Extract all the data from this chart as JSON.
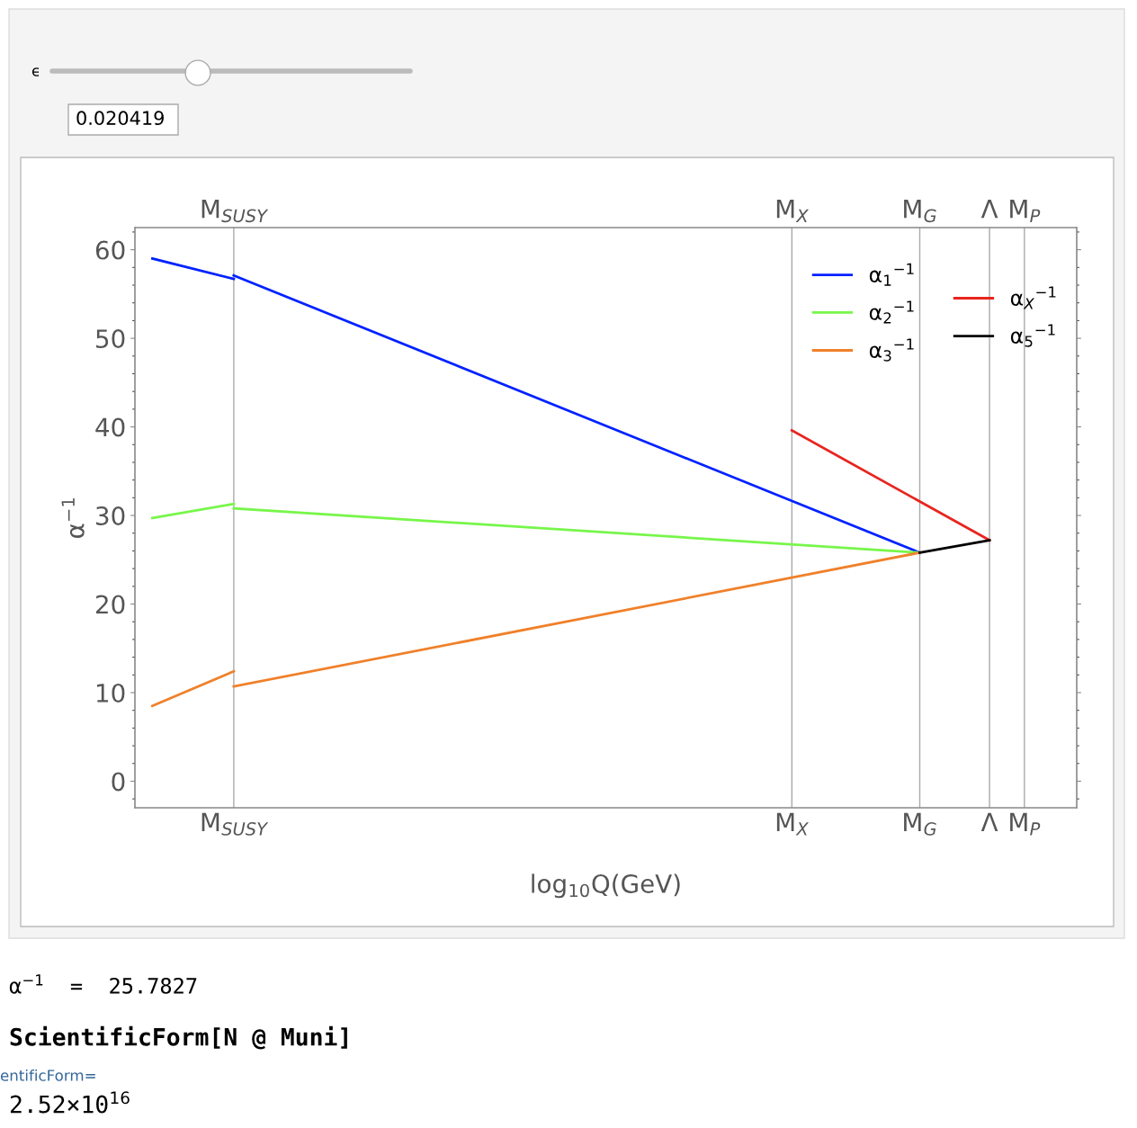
{
  "chart_data": {
    "type": "line",
    "xlabel": "log$_{10}$Q(GeV)",
    "ylabel": "α$^{−1}$",
    "ylim": [
      -3,
      62.5
    ],
    "categories": [
      null,
      null,
      null,
      null,
      null,
      null,
      null,
      null,
      "M$_{SUSY}$",
      null,
      null,
      null,
      null,
      null,
      null,
      null,
      null,
      null,
      null,
      null,
      null,
      null,
      null,
      null,
      null,
      null,
      null,
      null,
      null,
      null,
      null,
      null,
      null,
      null,
      null,
      null,
      null,
      null,
      null,
      null,
      null,
      null,
      null,
      null,
      null,
      null,
      null,
      null,
      null,
      null,
      null,
      null,
      null,
      null,
      null,
      null,
      "M$_{X}$",
      null,
      null,
      null,
      null,
      null,
      null,
      null,
      null,
      null,
      null,
      "M$_{G}$",
      null,
      null,
      null,
      null,
      null,
      "Λ",
      null,
      null,
      "M$_{P}$",
      null,
      null,
      null,
      null
    ],
    "yticks": [
      0,
      10,
      20,
      30,
      40,
      50,
      60
    ],
    "grid": "x",
    "legend": "top right",
    "series": [
      {
        "color": "#0022ff",
        "values": [
          null,
          59.0,
          null,
          null,
          null,
          null,
          null,
          null,
          56.7,
          null,
          null,
          null,
          null,
          null,
          null,
          null,
          null,
          null,
          null,
          null,
          null,
          null,
          null,
          null,
          null,
          null,
          null,
          null,
          null,
          null,
          null,
          null,
          null,
          null,
          null,
          null,
          null,
          null,
          null,
          null,
          null,
          null,
          null,
          null,
          null,
          null,
          null,
          null,
          null,
          null,
          null,
          null,
          null,
          null,
          null,
          null,
          null,
          null,
          null,
          null,
          null,
          null,
          null,
          null,
          null,
          null,
          null,
          null,
          null,
          null,
          null,
          null,
          null,
          null,
          null,
          null,
          null,
          null,
          null,
          null,
          null
        ]
      },
      {
        "name": "α$_{1}$$^{−1}$",
        "color": "#0022ff",
        "values": [
          null,
          null,
          null,
          null,
          null,
          null,
          null,
          null,
          57.1,
          null,
          null,
          null,
          null,
          null,
          null,
          null,
          null,
          null,
          null,
          null,
          null,
          null,
          null,
          null,
          null,
          null,
          null,
          null,
          null,
          null,
          null,
          null,
          null,
          null,
          null,
          null,
          null,
          null,
          null,
          null,
          null,
          null,
          null,
          null,
          null,
          null,
          null,
          null,
          null,
          null,
          null,
          null,
          null,
          null,
          null,
          null,
          null,
          null,
          null,
          null,
          null,
          null,
          null,
          null,
          null,
          null,
          null,
          25.8,
          null,
          null,
          null,
          null,
          null,
          null,
          null,
          null,
          null,
          null,
          null,
          null,
          null
        ]
      },
      {
        "color": "#77f64a",
        "values": [
          null,
          29.7,
          null,
          null,
          null,
          null,
          null,
          null,
          31.3,
          null,
          null,
          null,
          null,
          null,
          null,
          null,
          null,
          null,
          null,
          null,
          null,
          null,
          null,
          null,
          null,
          null,
          null,
          null,
          null,
          null,
          null,
          null,
          null,
          null,
          null,
          null,
          null,
          null,
          null,
          null,
          null,
          null,
          null,
          null,
          null,
          null,
          null,
          null,
          null,
          null,
          null,
          null,
          null,
          null,
          null,
          null,
          null,
          null,
          null,
          null,
          null,
          null,
          null,
          null,
          null,
          null,
          null,
          null,
          null,
          null,
          null,
          null,
          null,
          null,
          null,
          null,
          null,
          null,
          null,
          null,
          null
        ]
      },
      {
        "name": "α$_{2}$$^{−1}$",
        "color": "#77f64a",
        "values": [
          null,
          null,
          null,
          null,
          null,
          null,
          null,
          null,
          30.8,
          null,
          null,
          null,
          null,
          null,
          null,
          null,
          null,
          null,
          null,
          null,
          null,
          null,
          null,
          null,
          null,
          null,
          null,
          null,
          null,
          null,
          null,
          null,
          null,
          null,
          null,
          null,
          null,
          null,
          null,
          null,
          null,
          null,
          null,
          null,
          null,
          null,
          null,
          null,
          null,
          null,
          null,
          null,
          null,
          null,
          null,
          null,
          null,
          null,
          null,
          null,
          null,
          null,
          null,
          null,
          null,
          null,
          null,
          25.8,
          null,
          null,
          null,
          null,
          null,
          null,
          null,
          null,
          null,
          null,
          null,
          null,
          null
        ]
      },
      {
        "color": "#f0802a",
        "values": [
          null,
          8.5,
          null,
          null,
          null,
          null,
          null,
          null,
          12.4,
          null,
          null,
          null,
          null,
          null,
          null,
          null,
          null,
          null,
          null,
          null,
          null,
          null,
          null,
          null,
          null,
          null,
          null,
          null,
          null,
          null,
          null,
          null,
          null,
          null,
          null,
          null,
          null,
          null,
          null,
          null,
          null,
          null,
          null,
          null,
          null,
          null,
          null,
          null,
          null,
          null,
          null,
          null,
          null,
          null,
          null,
          null,
          null,
          null,
          null,
          null,
          null,
          null,
          null,
          null,
          null,
          null,
          null,
          null,
          null,
          null,
          null,
          null,
          null,
          null,
          null,
          null,
          null,
          null,
          null,
          null,
          null
        ]
      },
      {
        "name": "α$_{3}$$^{−1}$",
        "color": "#f0802a",
        "values": [
          null,
          null,
          null,
          null,
          null,
          null,
          null,
          null,
          10.7,
          null,
          null,
          null,
          null,
          null,
          null,
          null,
          null,
          null,
          null,
          null,
          null,
          null,
          null,
          null,
          null,
          null,
          null,
          null,
          null,
          null,
          null,
          null,
          null,
          null,
          null,
          null,
          null,
          null,
          null,
          null,
          null,
          null,
          null,
          null,
          null,
          null,
          null,
          null,
          null,
          null,
          null,
          null,
          null,
          null,
          null,
          null,
          null,
          null,
          null,
          null,
          null,
          null,
          null,
          null,
          null,
          null,
          null,
          25.8,
          null,
          null,
          null,
          null,
          null,
          null,
          null,
          null,
          null,
          null,
          null,
          null,
          null
        ]
      },
      {
        "name": "α$_{X}$$^{−1}$",
        "color": "#e8251f",
        "values": [
          null,
          null,
          null,
          null,
          null,
          null,
          null,
          null,
          null,
          null,
          null,
          null,
          null,
          null,
          null,
          null,
          null,
          null,
          null,
          null,
          null,
          null,
          null,
          null,
          null,
          null,
          null,
          null,
          null,
          null,
          null,
          null,
          null,
          null,
          null,
          null,
          null,
          null,
          null,
          null,
          null,
          null,
          null,
          null,
          null,
          null,
          null,
          null,
          null,
          null,
          null,
          null,
          null,
          null,
          null,
          null,
          39.6,
          null,
          null,
          null,
          null,
          null,
          null,
          null,
          null,
          null,
          null,
          null,
          null,
          null,
          null,
          null,
          null,
          27.2,
          null,
          null,
          null,
          null,
          null,
          null,
          null
        ]
      },
      {
        "name": "α$_{5}$$^{−1}$",
        "color": "#000000",
        "values": [
          null,
          null,
          null,
          null,
          null,
          null,
          null,
          null,
          null,
          null,
          null,
          null,
          null,
          null,
          null,
          null,
          null,
          null,
          null,
          null,
          null,
          null,
          null,
          null,
          null,
          null,
          null,
          null,
          null,
          null,
          null,
          null,
          null,
          null,
          null,
          null,
          null,
          null,
          null,
          null,
          null,
          null,
          null,
          null,
          null,
          null,
          null,
          null,
          null,
          null,
          null,
          null,
          null,
          null,
          null,
          null,
          null,
          null,
          null,
          null,
          null,
          null,
          null,
          null,
          null,
          null,
          null,
          25.8,
          null,
          null,
          null,
          null,
          null,
          27.2,
          null,
          null,
          null,
          null,
          null,
          null,
          null
        ]
      }
    ],
    "annotations": [
      "ϵ",
      "0.020419",
      "α$^{−1}$  =  25.7827",
      "ScientificForm[N @ Muni]",
      "entificForm=",
      "2.52×10$^{16}$"
    ]
  }
}
